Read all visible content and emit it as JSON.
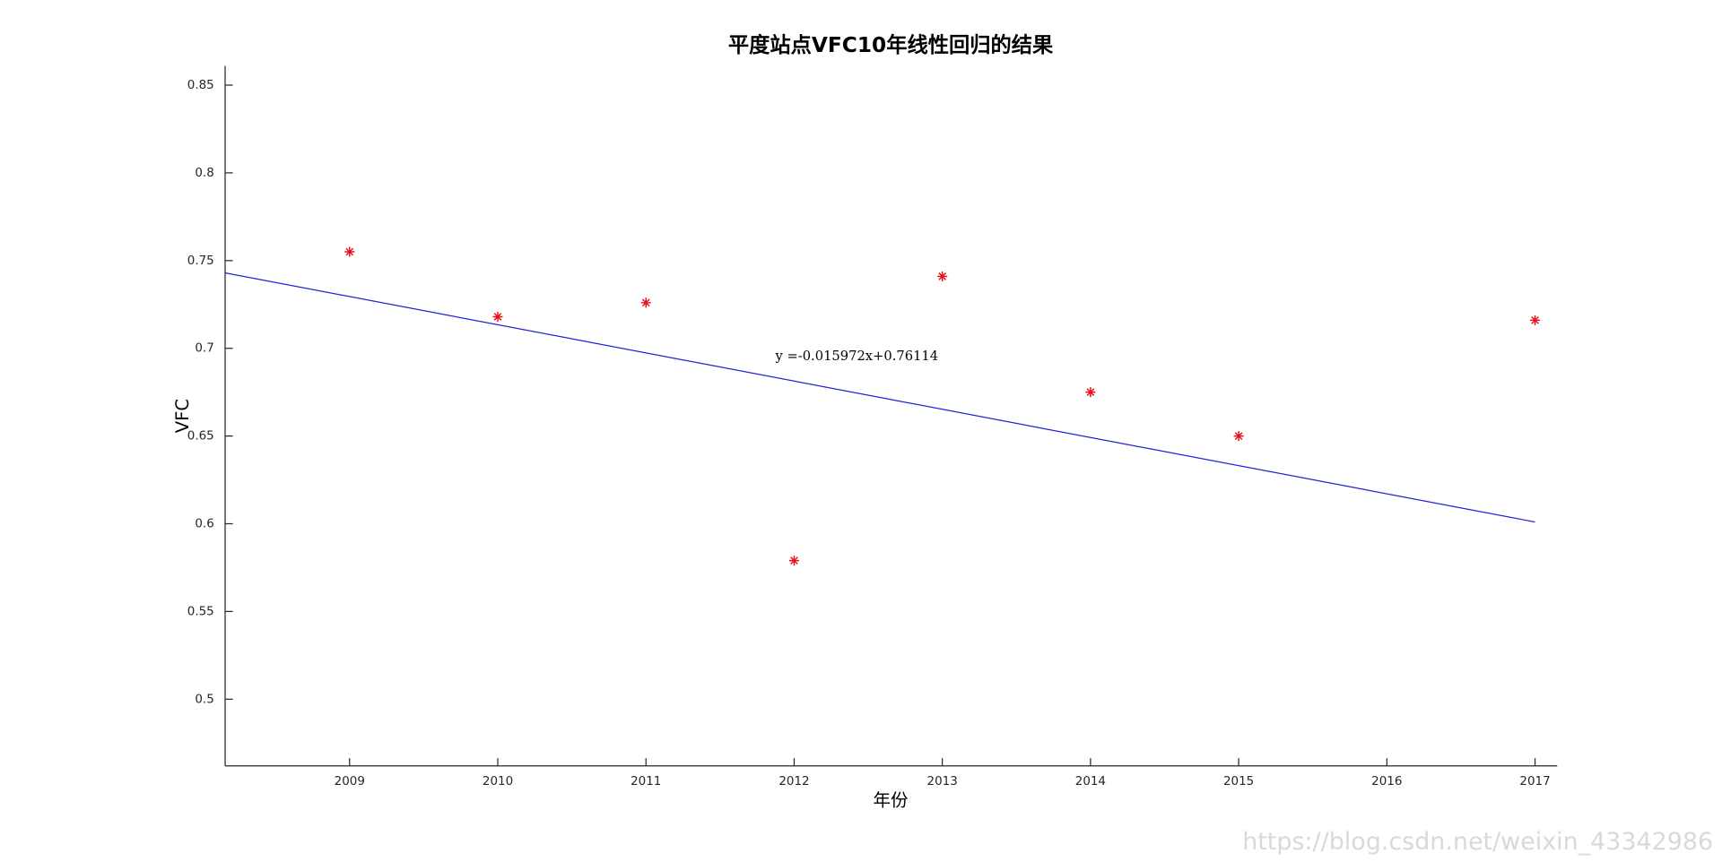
{
  "chart_data": {
    "type": "scatter",
    "title": "平度站点VFC10年线性回归的结果",
    "x_label": "年份",
    "y_label": "VFC",
    "annotation": "y =-0.015972x+0.76114",
    "watermark": "https://blog.csdn.net/weixin_43342986",
    "series": [
      {
        "type": "scatter",
        "color": "#e8101e",
        "x": [
          2009,
          2010,
          2011,
          2012,
          2013,
          2014,
          2015,
          2017
        ],
        "values": [
          0.755,
          0.718,
          0.726,
          0.579,
          0.741,
          0.675,
          0.65,
          0.716
        ]
      },
      {
        "type": "line",
        "color": "#1f1fd6",
        "x": [
          2008.16,
          2017
        ],
        "values": [
          0.743,
          0.601
        ]
      }
    ],
    "xlim": [
      2008.16,
      2017.15
    ],
    "ylim": [
      0.462,
      0.861
    ],
    "xticks": [
      2009,
      2010,
      2011,
      2012,
      2013,
      2014,
      2015,
      2016,
      2017
    ],
    "yticks": [
      0.5,
      0.55,
      0.6,
      0.65,
      0.7,
      0.75,
      0.8,
      0.85
    ],
    "grid": false
  }
}
